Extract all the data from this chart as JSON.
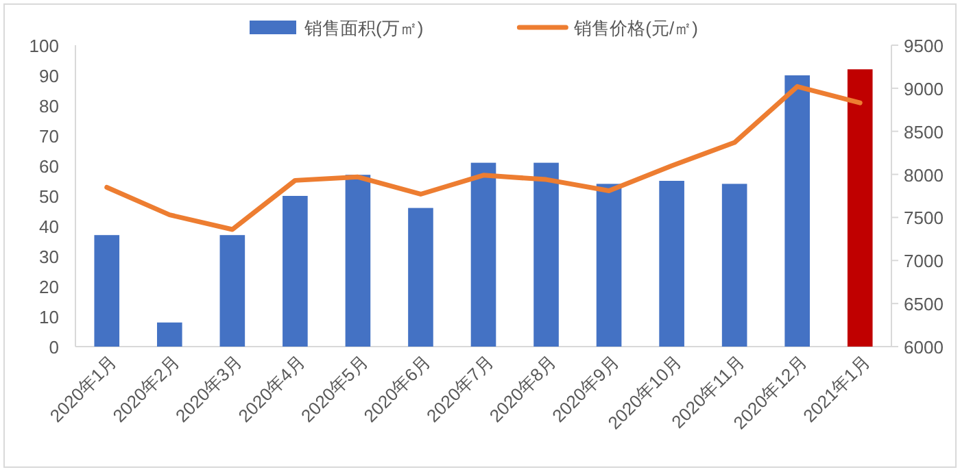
{
  "chart_data": {
    "type": "bar",
    "categories": [
      "2020年1月",
      "2020年2月",
      "2020年3月",
      "2020年4月",
      "2020年5月",
      "2020年6月",
      "2020年7月",
      "2020年8月",
      "2020年9月",
      "2020年10月",
      "2020年11月",
      "2020年12月",
      "2021年1月"
    ],
    "series": [
      {
        "name": "销售面积(万㎡)",
        "color": "#4472c4",
        "colors": [
          "#4472c4",
          "#4472c4",
          "#4472c4",
          "#4472c4",
          "#4472c4",
          "#4472c4",
          "#4472c4",
          "#4472c4",
          "#4472c4",
          "#4472c4",
          "#4472c4",
          "#4472c4",
          "#c00000"
        ],
        "values": [
          37,
          8,
          37,
          50,
          57,
          46,
          61,
          61,
          54,
          55,
          54,
          90,
          92
        ]
      },
      {
        "name": "销售价格(元/㎡)",
        "type": "line",
        "axis": "y2",
        "color": "#ed7d31",
        "values": [
          7850,
          7530,
          7360,
          7930,
          7970,
          7770,
          7990,
          7940,
          7810,
          8100,
          8370,
          9020,
          8830
        ]
      }
    ],
    "ylim": [
      0,
      100
    ],
    "yticks": [
      0,
      10,
      20,
      30,
      40,
      50,
      60,
      70,
      80,
      90,
      100
    ],
    "y2lim": [
      6000,
      9500
    ],
    "y2ticks": [
      6000,
      6500,
      7000,
      7500,
      8000,
      8500,
      9000,
      9500
    ],
    "legend": "top",
    "grid": false,
    "marker": "none",
    "line_style": "solid"
  }
}
